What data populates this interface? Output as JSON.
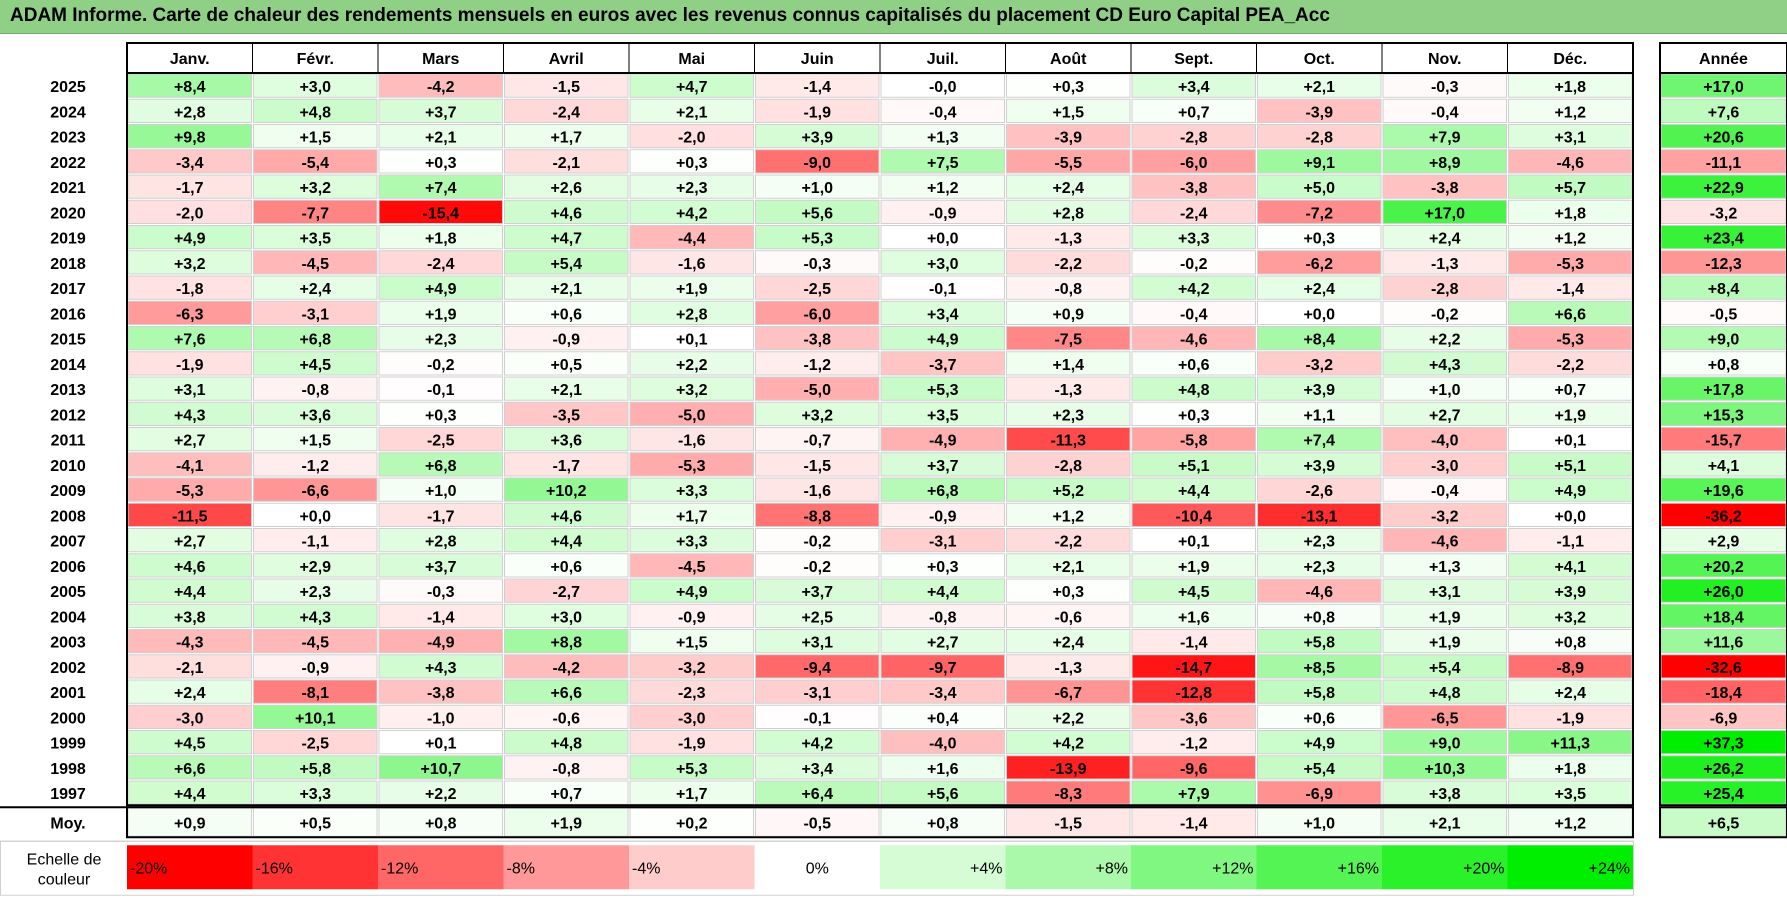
{
  "title": "ADAM Informe. Carte de chaleur des rendements mensuels en euros avec les revenus connus capitalisés du placement CD Euro Capital PEA_Acc",
  "chart_data": {
    "type": "heatmap",
    "months": [
      "Janv.",
      "Févr.",
      "Mars",
      "Avril",
      "Mai",
      "Juin",
      "Juil.",
      "Août",
      "Sept.",
      "Oct.",
      "Nov.",
      "Déc."
    ],
    "year_header": "Année",
    "rows": [
      {
        "year": "2025",
        "months": [
          "+8,4",
          "+3,0",
          "-4,2",
          "-1,5",
          "+4,7",
          "-1,4",
          "-0,0",
          "+0,3",
          "+3,4",
          "+2,1",
          "-0,3",
          "+1,8"
        ],
        "annual": "+17,0"
      },
      {
        "year": "2024",
        "months": [
          "+2,8",
          "+4,8",
          "+3,7",
          "-2,4",
          "+2,1",
          "-1,9",
          "-0,4",
          "+1,5",
          "+0,7",
          "-3,9",
          "-0,4",
          "+1,2"
        ],
        "annual": "+7,6"
      },
      {
        "year": "2023",
        "months": [
          "+9,8",
          "+1,5",
          "+2,1",
          "+1,7",
          "-2,0",
          "+3,9",
          "+1,3",
          "-3,9",
          "-2,8",
          "-2,8",
          "+7,9",
          "+3,1"
        ],
        "annual": "+20,6"
      },
      {
        "year": "2022",
        "months": [
          "-3,4",
          "-5,4",
          "+0,3",
          "-2,1",
          "+0,3",
          "-9,0",
          "+7,5",
          "-5,5",
          "-6,0",
          "+9,1",
          "+8,9",
          "-4,6"
        ],
        "annual": "-11,1"
      },
      {
        "year": "2021",
        "months": [
          "-1,7",
          "+3,2",
          "+7,4",
          "+2,6",
          "+2,3",
          "+1,0",
          "+1,2",
          "+2,4",
          "-3,8",
          "+5,0",
          "-3,8",
          "+5,7"
        ],
        "annual": "+22,9"
      },
      {
        "year": "2020",
        "months": [
          "-2,0",
          "-7,7",
          "-15,4",
          "+4,6",
          "+4,2",
          "+5,6",
          "-0,9",
          "+2,8",
          "-2,4",
          "-7,2",
          "+17,0",
          "+1,8"
        ],
        "annual": "-3,2"
      },
      {
        "year": "2019",
        "months": [
          "+4,9",
          "+3,5",
          "+1,8",
          "+4,7",
          "-4,4",
          "+5,3",
          "+0,0",
          "-1,3",
          "+3,3",
          "+0,3",
          "+2,4",
          "+1,2"
        ],
        "annual": "+23,4"
      },
      {
        "year": "2018",
        "months": [
          "+3,2",
          "-4,5",
          "-2,4",
          "+5,4",
          "-1,6",
          "-0,3",
          "+3,0",
          "-2,2",
          "-0,2",
          "-6,2",
          "-1,3",
          "-5,3"
        ],
        "annual": "-12,3"
      },
      {
        "year": "2017",
        "months": [
          "-1,8",
          "+2,4",
          "+4,9",
          "+2,1",
          "+1,9",
          "-2,5",
          "-0,1",
          "-0,8",
          "+4,2",
          "+2,4",
          "-2,8",
          "-1,4"
        ],
        "annual": "+8,4"
      },
      {
        "year": "2016",
        "months": [
          "-6,3",
          "-3,1",
          "+1,9",
          "+0,6",
          "+2,8",
          "-6,0",
          "+3,4",
          "+0,9",
          "-0,4",
          "+0,0",
          "-0,2",
          "+6,6"
        ],
        "annual": "-0,5"
      },
      {
        "year": "2015",
        "months": [
          "+7,6",
          "+6,8",
          "+2,3",
          "-0,9",
          "+0,1",
          "-3,8",
          "+4,9",
          "-7,5",
          "-4,6",
          "+8,4",
          "+2,2",
          "-5,3"
        ],
        "annual": "+9,0"
      },
      {
        "year": "2014",
        "months": [
          "-1,9",
          "+4,5",
          "-0,2",
          "+0,5",
          "+2,2",
          "-1,2",
          "-3,7",
          "+1,4",
          "+0,6",
          "-3,2",
          "+4,3",
          "-2,2"
        ],
        "annual": "+0,8"
      },
      {
        "year": "2013",
        "months": [
          "+3,1",
          "-0,8",
          "-0,1",
          "+2,1",
          "+3,2",
          "-5,0",
          "+5,3",
          "-1,3",
          "+4,8",
          "+3,9",
          "+1,0",
          "+0,7"
        ],
        "annual": "+17,8"
      },
      {
        "year": "2012",
        "months": [
          "+4,3",
          "+3,6",
          "+0,3",
          "-3,5",
          "-5,0",
          "+3,2",
          "+3,5",
          "+2,3",
          "+0,3",
          "+1,1",
          "+2,7",
          "+1,9"
        ],
        "annual": "+15,3"
      },
      {
        "year": "2011",
        "months": [
          "+2,7",
          "+1,5",
          "-2,5",
          "+3,6",
          "-1,6",
          "-0,7",
          "-4,9",
          "-11,3",
          "-5,8",
          "+7,4",
          "-4,0",
          "+0,1"
        ],
        "annual": "-15,7"
      },
      {
        "year": "2010",
        "months": [
          "-4,1",
          "-1,2",
          "+6,8",
          "-1,7",
          "-5,3",
          "-1,5",
          "+3,7",
          "-2,8",
          "+5,1",
          "+3,9",
          "-3,0",
          "+5,1"
        ],
        "annual": "+4,1"
      },
      {
        "year": "2009",
        "months": [
          "-5,3",
          "-6,6",
          "+1,0",
          "+10,2",
          "+3,3",
          "-1,6",
          "+6,8",
          "+5,2",
          "+4,4",
          "-2,6",
          "-0,4",
          "+4,9"
        ],
        "annual": "+19,6"
      },
      {
        "year": "2008",
        "months": [
          "-11,5",
          "+0,0",
          "-1,7",
          "+4,6",
          "+1,7",
          "-8,8",
          "-0,9",
          "+1,2",
          "-10,4",
          "-13,1",
          "-3,2",
          "+0,0"
        ],
        "annual": "-36,2"
      },
      {
        "year": "2007",
        "months": [
          "+2,7",
          "-1,1",
          "+2,8",
          "+4,4",
          "+3,3",
          "-0,2",
          "-3,1",
          "-2,2",
          "+0,1",
          "+2,3",
          "-4,6",
          "-1,1"
        ],
        "annual": "+2,9"
      },
      {
        "year": "2006",
        "months": [
          "+4,6",
          "+2,9",
          "+3,7",
          "+0,6",
          "-4,5",
          "-0,2",
          "+0,3",
          "+2,1",
          "+1,9",
          "+2,3",
          "+1,3",
          "+4,1"
        ],
        "annual": "+20,2"
      },
      {
        "year": "2005",
        "months": [
          "+4,4",
          "+2,3",
          "-0,3",
          "-2,7",
          "+4,9",
          "+3,7",
          "+4,4",
          "+0,3",
          "+4,5",
          "-4,6",
          "+3,1",
          "+3,9"
        ],
        "annual": "+26,0"
      },
      {
        "year": "2004",
        "months": [
          "+3,8",
          "+4,3",
          "-1,4",
          "+3,0",
          "-0,9",
          "+2,5",
          "-0,8",
          "-0,6",
          "+1,6",
          "+0,8",
          "+1,9",
          "+3,2"
        ],
        "annual": "+18,4"
      },
      {
        "year": "2003",
        "months": [
          "-4,3",
          "-4,5",
          "-4,9",
          "+8,8",
          "+1,5",
          "+3,1",
          "+2,7",
          "+2,4",
          "-1,4",
          "+5,8",
          "+1,9",
          "+0,8"
        ],
        "annual": "+11,6"
      },
      {
        "year": "2002",
        "months": [
          "-2,1",
          "-0,9",
          "+4,3",
          "-4,2",
          "-3,2",
          "-9,4",
          "-9,7",
          "-1,3",
          "-14,7",
          "+8,5",
          "+5,4",
          "-8,9"
        ],
        "annual": "-32,6"
      },
      {
        "year": "2001",
        "months": [
          "+2,4",
          "-8,1",
          "-3,8",
          "+6,6",
          "-2,3",
          "-3,1",
          "-3,4",
          "-6,7",
          "-12,8",
          "+5,8",
          "+4,8",
          "+2,4"
        ],
        "annual": "-18,4"
      },
      {
        "year": "2000",
        "months": [
          "-3,0",
          "+10,1",
          "-1,0",
          "-0,6",
          "-3,0",
          "-0,1",
          "+0,4",
          "+2,2",
          "-3,6",
          "+0,6",
          "-6,5",
          "-1,9"
        ],
        "annual": "-6,9"
      },
      {
        "year": "1999",
        "months": [
          "+4,5",
          "-2,5",
          "+0,1",
          "+4,8",
          "-1,9",
          "+4,2",
          "-4,0",
          "+4,2",
          "-1,2",
          "+4,9",
          "+9,0",
          "+11,3"
        ],
        "annual": "+37,3"
      },
      {
        "year": "1998",
        "months": [
          "+6,6",
          "+5,8",
          "+10,7",
          "-0,8",
          "+5,3",
          "+3,4",
          "+1,6",
          "-13,9",
          "-9,6",
          "+5,4",
          "+10,3",
          "+1,8"
        ],
        "annual": "+26,2"
      },
      {
        "year": "1997",
        "months": [
          "+4,4",
          "+3,3",
          "+2,2",
          "+0,7",
          "+1,7",
          "+6,4",
          "+5,6",
          "-8,3",
          "+7,9",
          "-6,9",
          "+3,8",
          "+3,5"
        ],
        "annual": "+25,4"
      }
    ],
    "average": {
      "label": "Moy.",
      "months": [
        "+0,9",
        "+0,5",
        "+0,8",
        "+1,9",
        "+0,2",
        "-0,5",
        "+0,8",
        "-1,5",
        "-1,4",
        "+1,0",
        "+2,1",
        "+1,2"
      ],
      "annual": "+6,5"
    },
    "scale": {
      "label_line1": "Echelle de",
      "label_line2": "couleur",
      "steps": [
        {
          "text": "-20%",
          "value": -20
        },
        {
          "text": "-16%",
          "value": -16
        },
        {
          "text": "-12%",
          "value": -12
        },
        {
          "text": "-8%",
          "value": -8
        },
        {
          "text": "-4%",
          "value": -4
        },
        {
          "text": "0%",
          "value": 0
        },
        {
          "text": "+4%",
          "value": 4
        },
        {
          "text": "+8%",
          "value": 8
        },
        {
          "text": "+12%",
          "value": 12
        },
        {
          "text": "+16%",
          "value": 16
        },
        {
          "text": "+20%",
          "value": 20
        },
        {
          "text": "+24%",
          "value": 24
        }
      ]
    },
    "colors": {
      "negative": "#ff0000",
      "neutral": "#ffffff",
      "positive": "#00ee00",
      "title_band": "#8fcf86"
    }
  }
}
